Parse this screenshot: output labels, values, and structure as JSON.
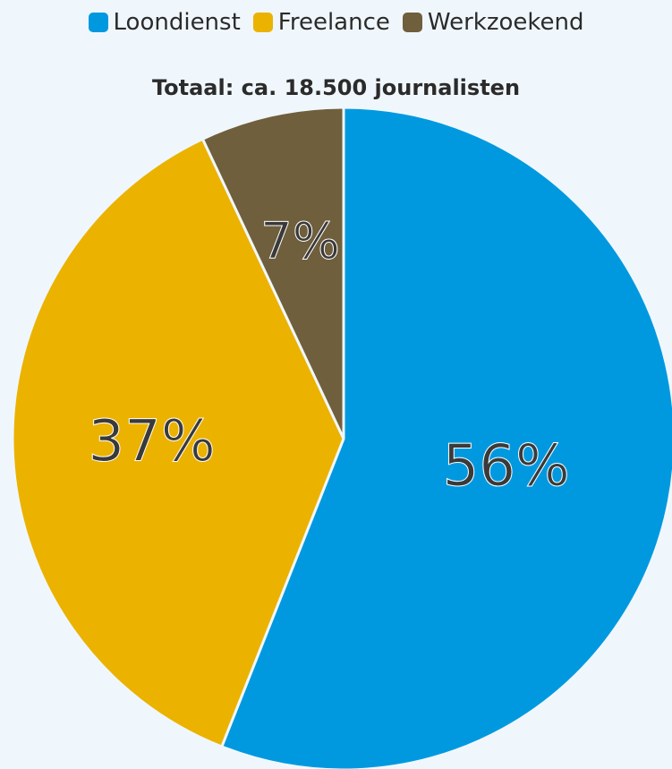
{
  "chart_data": {
    "type": "pie",
    "title": "Totaal: ca. 18.500 journalisten",
    "legend": "top",
    "series": [
      {
        "name": "Loondienst",
        "value": 56,
        "label": "56%",
        "color": "#0099e0"
      },
      {
        "name": "Freelance",
        "value": 37,
        "label": "37%",
        "color": "#ebb200"
      },
      {
        "name": "Werkzoekend",
        "value": 7,
        "label": "7%",
        "color": "#705f3c"
      }
    ]
  }
}
